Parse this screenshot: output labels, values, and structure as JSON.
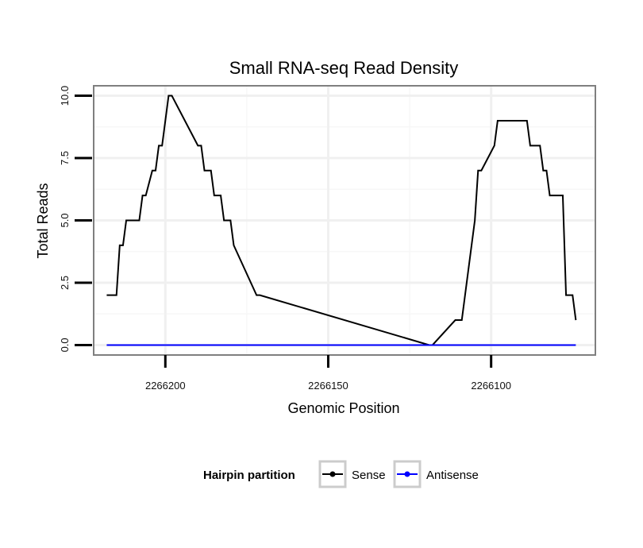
{
  "chart_data": {
    "type": "line",
    "title": "Small RNA-seq Read Density",
    "xlabel": "Genomic Position",
    "ylabel": "Total Reads",
    "x_reversed": true,
    "xlim": [
      2266222,
      2266068
    ],
    "ylim": [
      -0.4,
      10.4
    ],
    "x_ticks": [
      2266200,
      2266150,
      2266100
    ],
    "x_tick_labels": [
      "2266200",
      "2266150",
      "2266100"
    ],
    "y_ticks": [
      0,
      2.5,
      5,
      7.5,
      10
    ],
    "y_tick_labels": [
      "0.0",
      "2.5",
      "5.0",
      "7.5",
      "10.0"
    ],
    "grid": true,
    "legend": {
      "title": "Hairpin partition",
      "position": "bottom",
      "entries": [
        {
          "name": "Sense",
          "color": "#000000"
        },
        {
          "name": "Antisense",
          "color": "#0000ff"
        }
      ]
    },
    "series": [
      {
        "name": "Sense",
        "color": "#000000",
        "x": [
          2266218,
          2266215,
          2266214,
          2266213,
          2266212,
          2266208,
          2266207,
          2266206,
          2266204,
          2266203,
          2266202,
          2266201,
          2266199,
          2266198,
          2266190,
          2266189,
          2266188,
          2266186,
          2266185,
          2266183,
          2266182,
          2266180,
          2266179,
          2266172,
          2266171,
          2266119,
          2266118,
          2266111,
          2266110,
          2266109,
          2266107,
          2266106,
          2266105,
          2266104,
          2266103,
          2266099,
          2266098,
          2266089,
          2266088,
          2266085,
          2266084,
          2266083,
          2266082,
          2266078,
          2266077,
          2266075,
          2266074
        ],
        "y": [
          2,
          2,
          4,
          4,
          5,
          5,
          6,
          6,
          7,
          7,
          8,
          8,
          10,
          10,
          8,
          8,
          7,
          7,
          6,
          6,
          5,
          5,
          4,
          2,
          2,
          0,
          0,
          1,
          1,
          1,
          3,
          4,
          5,
          7,
          7,
          8,
          9,
          9,
          8,
          8,
          7,
          7,
          6,
          6,
          2,
          2,
          1
        ]
      },
      {
        "name": "Antisense",
        "color": "#0000ff",
        "x": [
          2266218,
          2266074
        ],
        "y": [
          0,
          0
        ]
      }
    ]
  }
}
